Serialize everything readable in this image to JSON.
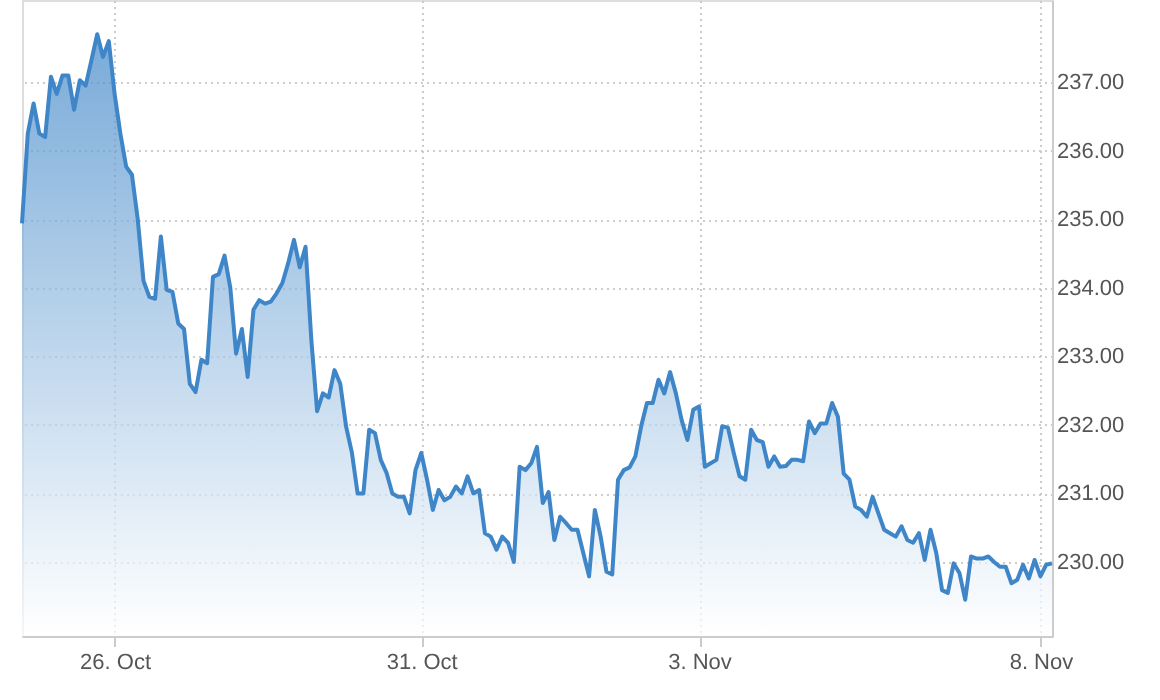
{
  "chart_data": {
    "type": "area",
    "categories": [
      null,
      null,
      null,
      null,
      null,
      null,
      null,
      null,
      null,
      null,
      null,
      null,
      null,
      null,
      null,
      null,
      "26. Oct",
      null,
      null,
      null,
      null,
      null,
      null,
      null,
      null,
      null,
      null,
      null,
      null,
      null,
      null,
      null,
      null,
      null,
      null,
      null,
      null,
      null,
      null,
      null,
      null,
      null,
      null,
      null,
      null,
      null,
      null,
      null,
      null,
      null,
      null,
      null,
      null,
      null,
      null,
      null,
      null,
      null,
      null,
      null,
      null,
      null,
      null,
      null,
      null,
      null,
      null,
      null,
      null,
      "31. Oct",
      null,
      null,
      null,
      null,
      null,
      null,
      null,
      null,
      null,
      null,
      null,
      null,
      null,
      null,
      null,
      null,
      null,
      null,
      null,
      null,
      null,
      null,
      null,
      null,
      null,
      null,
      null,
      null,
      null,
      null,
      null,
      null,
      null,
      null,
      null,
      null,
      null,
      null,
      null,
      null,
      null,
      null,
      null,
      null,
      null,
      null,
      null,
      "3. Nov",
      null,
      null,
      null,
      null,
      null,
      null,
      null,
      null,
      null,
      null,
      null,
      null,
      null,
      null,
      null,
      null,
      null,
      null,
      null,
      null,
      null,
      null,
      null,
      null,
      null,
      null,
      null,
      null,
      null,
      null,
      null,
      null,
      null,
      null,
      null,
      null,
      null,
      null,
      null,
      null,
      null,
      null,
      null,
      null,
      null,
      null,
      null,
      null,
      null,
      null,
      null,
      null,
      null,
      null,
      null,
      null,
      null,
      null,
      "8. Nov",
      null,
      null
    ],
    "series": [
      {
        "color": "#3f86c8",
        "values": [
          234.94,
          236.25,
          236.69,
          236.25,
          236.2,
          237.08,
          236.83,
          237.1,
          237.1,
          236.6,
          237.03,
          236.95,
          237.32,
          237.7,
          237.37,
          237.6,
          236.83,
          236.25,
          235.77,
          235.65,
          235.0,
          234.1,
          233.87,
          233.84,
          234.75,
          233.97,
          233.94,
          233.48,
          233.4,
          232.6,
          232.48,
          232.95,
          232.9,
          234.16,
          234.2,
          234.47,
          234.0,
          233.04,
          233.4,
          232.7,
          233.68,
          233.82,
          233.77,
          233.8,
          233.92,
          234.07,
          234.36,
          234.7,
          234.3,
          234.6,
          233.24,
          232.2,
          232.46,
          232.4,
          232.8,
          232.6,
          231.98,
          231.6,
          231.0,
          231.0,
          231.93,
          231.88,
          231.49,
          231.3,
          231.0,
          230.95,
          230.95,
          230.71,
          231.34,
          231.59,
          231.2,
          230.76,
          231.05,
          230.9,
          230.95,
          231.1,
          231.0,
          231.25,
          231.0,
          231.05,
          230.42,
          230.37,
          230.18,
          230.37,
          230.28,
          230.0,
          231.39,
          231.34,
          231.44,
          231.68,
          230.86,
          231.02,
          230.32,
          230.66,
          230.57,
          230.47,
          230.47,
          230.13,
          229.79,
          230.76,
          230.37,
          229.86,
          229.82,
          231.2,
          231.34,
          231.38,
          231.54,
          231.98,
          232.32,
          232.32,
          232.66,
          232.46,
          232.77,
          232.46,
          232.07,
          231.78,
          232.22,
          232.27,
          231.39,
          231.44,
          231.49,
          231.98,
          231.96,
          231.59,
          231.25,
          231.2,
          231.93,
          231.78,
          231.75,
          231.39,
          231.54,
          231.39,
          231.4,
          231.49,
          231.49,
          231.47,
          232.05,
          231.88,
          232.02,
          232.02,
          232.32,
          232.12,
          231.29,
          231.2,
          230.81,
          230.76,
          230.66,
          230.95,
          230.71,
          230.47,
          230.42,
          230.37,
          230.52,
          230.32,
          230.28,
          230.42,
          230.03,
          230.47,
          230.13,
          229.59,
          229.55,
          229.98,
          229.84,
          229.45,
          230.08,
          230.05,
          230.05,
          230.08,
          230.0,
          229.93,
          229.93,
          229.69,
          229.74,
          229.96,
          229.76,
          230.03,
          229.79,
          229.96,
          229.98
        ]
      }
    ],
    "ylim": [
      228.92,
      238.2
    ],
    "yticks": [
      {
        "value": 230,
        "label": "230.00"
      },
      {
        "value": 231,
        "label": "231.00"
      },
      {
        "value": 232,
        "label": "232.00"
      },
      {
        "value": 233,
        "label": "233.00"
      },
      {
        "value": 234,
        "label": "234.00"
      },
      {
        "value": 235,
        "label": "235.00"
      },
      {
        "value": 236,
        "label": "236.00"
      },
      {
        "value": 237,
        "label": "237.00"
      }
    ],
    "grid": true
  }
}
